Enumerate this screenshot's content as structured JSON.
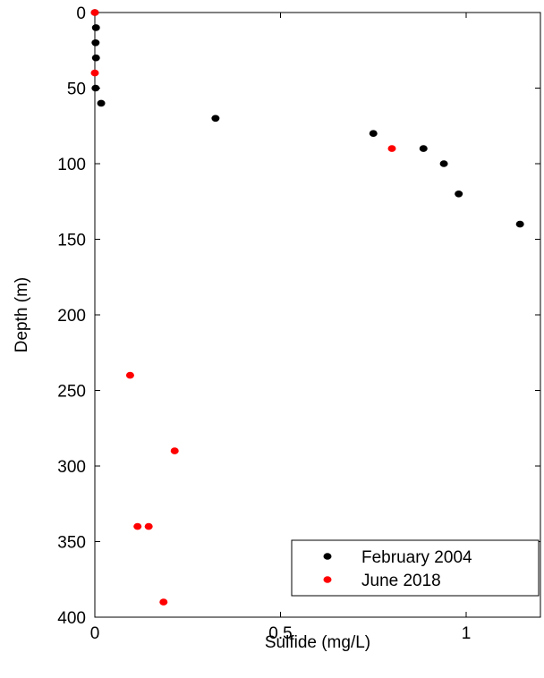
{
  "chart_data": {
    "type": "scatter",
    "xlabel": "Sulfide (mg/L)",
    "ylabel": "Depth (m)",
    "xlim": [
      0,
      1.2
    ],
    "ylim": [
      0,
      400
    ],
    "y_reversed": true,
    "x_ticks": [
      0,
      0.5,
      1
    ],
    "x_tick_labels": [
      "0",
      "0.5",
      "1"
    ],
    "y_ticks": [
      0,
      50,
      100,
      150,
      200,
      250,
      300,
      350,
      400
    ],
    "y_tick_labels": [
      "0",
      "50",
      "100",
      "150",
      "200",
      "250",
      "300",
      "350",
      "400"
    ],
    "grid": false,
    "legend_position": "bottom-right",
    "series": [
      {
        "name": "February 2004",
        "color": "#000000",
        "points": [
          {
            "x": 0.0,
            "y": 0
          },
          {
            "x": 0.003,
            "y": 10
          },
          {
            "x": 0.002,
            "y": 20
          },
          {
            "x": 0.003,
            "y": 30
          },
          {
            "x": 0.002,
            "y": 50
          },
          {
            "x": 0.017,
            "y": 60
          },
          {
            "x": 0.325,
            "y": 70
          },
          {
            "x": 0.75,
            "y": 80
          },
          {
            "x": 0.885,
            "y": 90
          },
          {
            "x": 0.94,
            "y": 100
          },
          {
            "x": 0.98,
            "y": 120
          },
          {
            "x": 1.145,
            "y": 140
          }
        ]
      },
      {
        "name": "June 2018",
        "color": "#ff0000",
        "points": [
          {
            "x": 0.0,
            "y": 0
          },
          {
            "x": 0.0,
            "y": 40
          },
          {
            "x": 0.8,
            "y": 90
          },
          {
            "x": 0.095,
            "y": 240
          },
          {
            "x": 0.215,
            "y": 290
          },
          {
            "x": 0.115,
            "y": 340
          },
          {
            "x": 0.145,
            "y": 340
          },
          {
            "x": 0.185,
            "y": 390
          }
        ]
      }
    ]
  }
}
